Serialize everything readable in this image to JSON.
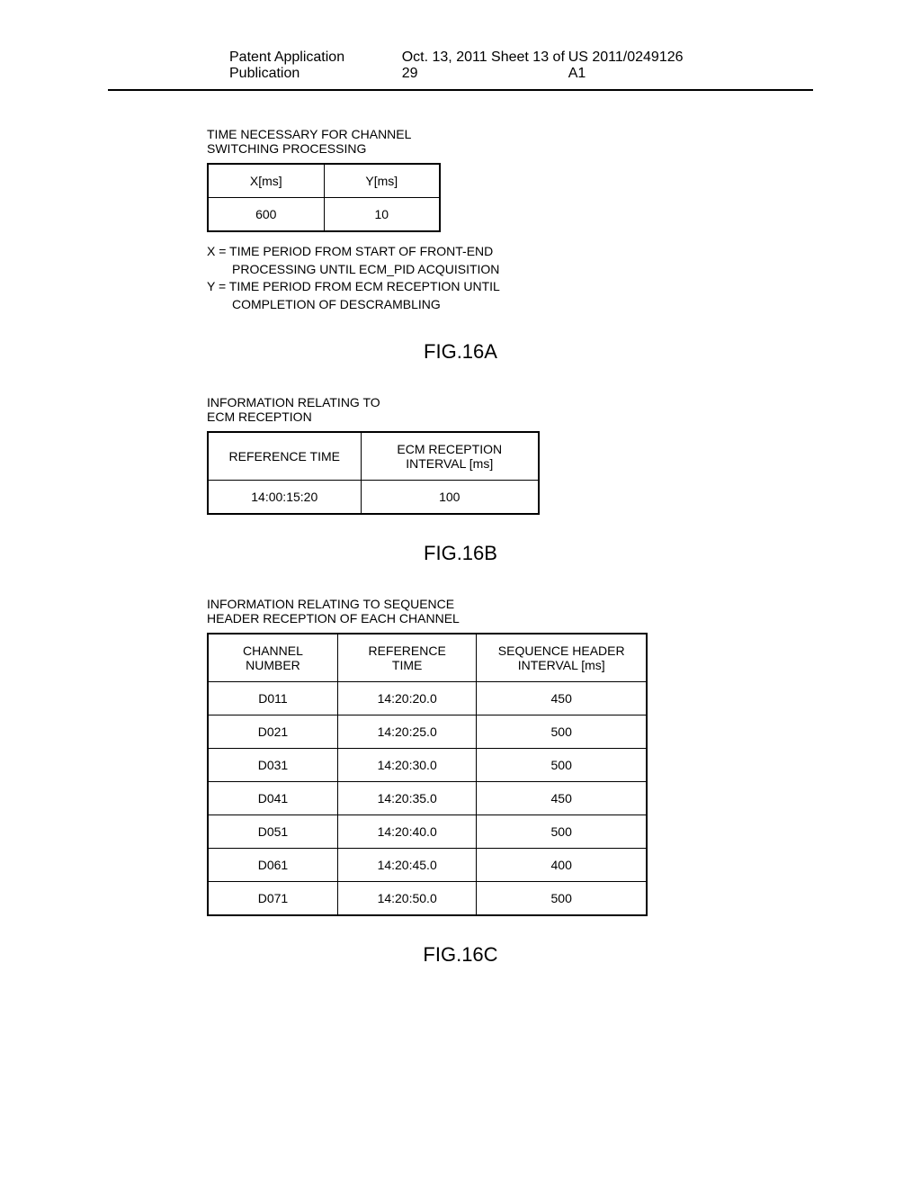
{
  "header": {
    "left": "Patent Application Publication",
    "center": "Oct. 13, 2011  Sheet 13 of 29",
    "right": "US 2011/0249126 A1"
  },
  "section1": {
    "title": "TIME NECESSARY FOR CHANNEL\nSWITCHING PROCESSING",
    "headers": [
      "X[ms]",
      "Y[ms]"
    ],
    "values": [
      "600",
      "10"
    ],
    "notes": [
      "X = TIME PERIOD FROM START OF FRONT-END",
      "PROCESSING UNTIL ECM_PID ACQUISITION",
      "Y = TIME PERIOD FROM ECM RECEPTION UNTIL",
      "COMPLETION OF DESCRAMBLING"
    ],
    "fig": "FIG.16A"
  },
  "section2": {
    "title": "INFORMATION RELATING TO\nECM RECEPTION",
    "headers": [
      "REFERENCE TIME",
      "ECM RECEPTION\nINTERVAL [ms]"
    ],
    "values": [
      "14:00:15:20",
      "100"
    ],
    "fig": "FIG.16B"
  },
  "section3": {
    "title": "INFORMATION RELATING TO SEQUENCE\nHEADER RECEPTION OF EACH CHANNEL",
    "headers": [
      "CHANNEL\nNUMBER",
      "REFERENCE\nTIME",
      "SEQUENCE HEADER\nINTERVAL [ms]"
    ],
    "rows": [
      [
        "D011",
        "14:20:20.0",
        "450"
      ],
      [
        "D021",
        "14:20:25.0",
        "500"
      ],
      [
        "D031",
        "14:20:30.0",
        "500"
      ],
      [
        "D041",
        "14:20:35.0",
        "450"
      ],
      [
        "D051",
        "14:20:40.0",
        "500"
      ],
      [
        "D061",
        "14:20:45.0",
        "400"
      ],
      [
        "D071",
        "14:20:50.0",
        "500"
      ]
    ],
    "fig": "FIG.16C"
  }
}
